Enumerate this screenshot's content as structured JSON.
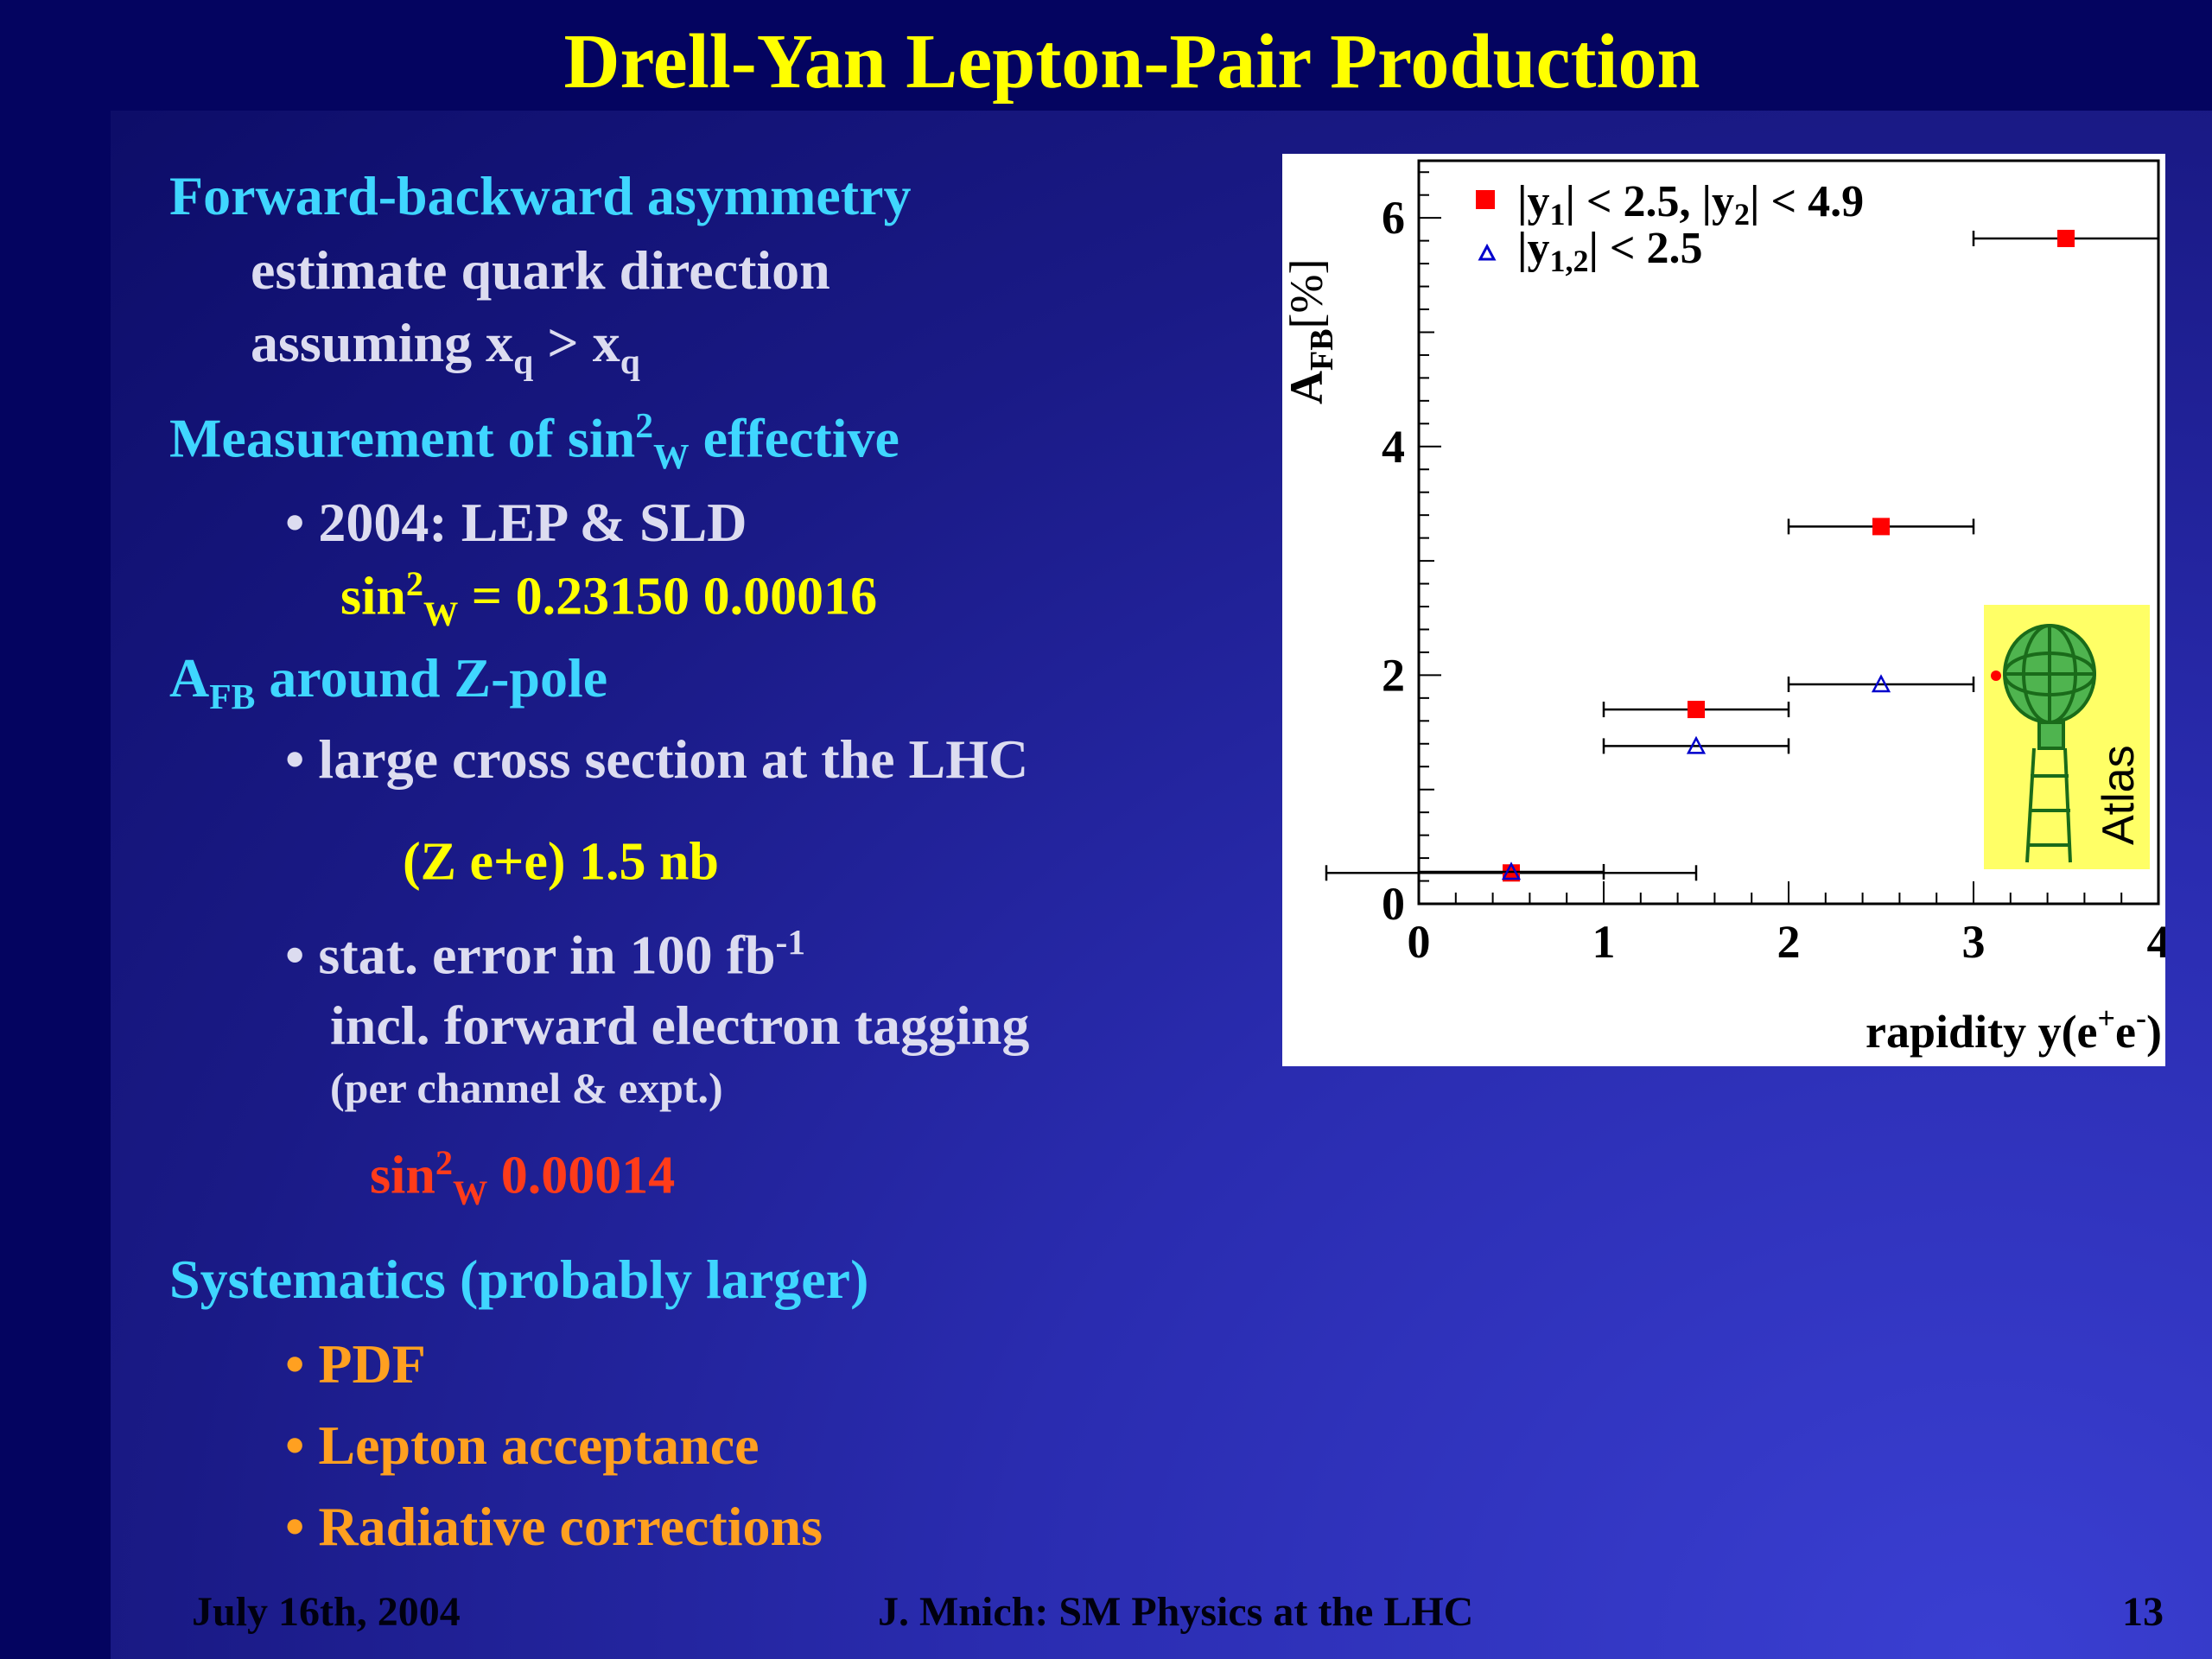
{
  "slide": {
    "title": "Drell-Yan Lepton-Pair Production",
    "box_glyph": "",
    "bullet_dot": "•",
    "sections": {
      "s1": {
        "title": "Forward-backward asymmetry",
        "line1": "estimate quark direction",
        "line2_prefix": "assuming x",
        "q_sub": "q",
        "gt": " > x"
      },
      "s2": {
        "title_pre": "Measurement of sin",
        "sup2": "2",
        "theta_glyph": "",
        "w_sub": "W",
        "title_post": " effective",
        "bullet": "2004: LEP & SLD",
        "value_pre": "sin",
        "value_mid": " = 0.23150 ",
        "pm_glyph": "",
        "value_post": " 0.00016"
      },
      "s3": {
        "a": "A",
        "fb_sub": "FB",
        "title_post": " around Z-pole",
        "bullet1": "large cross section at the LHC",
        "sigma_glyph": "",
        "xs_1": "(Z ",
        "arrow_glyph": "",
        "xs_2": " e+e",
        "minus_glyph": "",
        "xs_3": ") ",
        "approx_glyph": "",
        "xs_4": " 1.5 nb",
        "bullet2_pre": "stat. error in 100 fb",
        "bullet2_sup": "-1",
        "line_incl": "incl. forward electron tagging",
        "line_per": "(per channel & expt.)",
        "delta_glyph": "",
        "err_pre": "sin",
        "err_post": " 0.00014"
      },
      "s4": {
        "title": "Systematics (probably larger)",
        "items": [
          "PDF",
          "Lepton acceptance",
          "Radiative corrections"
        ]
      }
    }
  },
  "footer": {
    "date": "July 16th, 2004",
    "author": "J. Mnich: SM Physics at the LHC",
    "page": "13"
  },
  "chart_data": {
    "type": "scatter",
    "title": "",
    "xlabel": "rapidity y(e",
    "xlabel_sup": "+",
    "xlabel_sup2": "-",
    "xlabel_end": ")",
    "ylabel": "A",
    "ylabel_sub": "FB",
    "ylabel_unit": "[%]",
    "xlim": [
      0,
      4
    ],
    "ylim": [
      0,
      6.5
    ],
    "x_ticks": [
      "0",
      "1",
      "2",
      "3",
      "4"
    ],
    "y_ticks": [
      "0",
      "2",
      "4",
      "6"
    ],
    "series": [
      {
        "marker": "filled-square",
        "color": "#ff0000",
        "legend_y": "|y",
        "legend_sub": "1",
        "legend_mid": "| < 2.5,  |y",
        "legend_sub2": "2",
        "legend_end": "| < 4.9",
        "points": [
          {
            "x": 0.5,
            "y": 0.27,
            "xerr": 1.0
          },
          {
            "x": 1.5,
            "y": 1.7,
            "xerr": 0.5
          },
          {
            "x": 2.5,
            "y": 3.3,
            "xerr": 0.5
          },
          {
            "x": 3.5,
            "y": 5.82,
            "xerr": 0.5
          }
        ]
      },
      {
        "marker": "open-triangle",
        "color": "#0000cc",
        "legend_y": "|y",
        "legend_sub": "1,2",
        "legend_end": "| < 2.5",
        "points": [
          {
            "x": 0.5,
            "y": 0.28,
            "xerr": 0.5
          },
          {
            "x": 1.5,
            "y": 1.38,
            "xerr": 0.5
          },
          {
            "x": 2.5,
            "y": 1.92,
            "xerr": 0.5
          }
        ]
      }
    ],
    "inset_label": "Atlas",
    "legend_placement": "top-left"
  }
}
